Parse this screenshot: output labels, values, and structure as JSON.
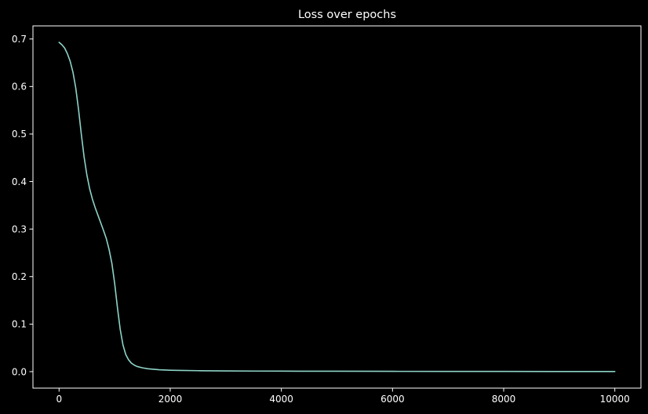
{
  "chart_data": {
    "type": "line",
    "title": "Loss over epochs",
    "xlabel": "",
    "ylabel": "",
    "xlim": [
      -470,
      10470
    ],
    "ylim": [
      -0.0347,
      0.7276
    ],
    "grid": false,
    "background_color": "#000000",
    "foreground_color": "#ffffff",
    "x_ticks": [
      0,
      2000,
      4000,
      6000,
      8000,
      10000
    ],
    "x_tick_labels": [
      "0",
      "2000",
      "4000",
      "6000",
      "8000",
      "10000"
    ],
    "y_ticks": [
      0.0,
      0.1,
      0.2,
      0.3,
      0.4,
      0.5,
      0.6,
      0.7
    ],
    "y_tick_labels": [
      "0.0",
      "0.1",
      "0.2",
      "0.3",
      "0.4",
      "0.5",
      "0.6",
      "0.7"
    ],
    "series": [
      {
        "color": "#8dd3c7",
        "x": [
          0,
          50,
          100,
          150,
          200,
          250,
          300,
          350,
          400,
          450,
          500,
          550,
          600,
          650,
          700,
          750,
          800,
          850,
          900,
          950,
          1000,
          1050,
          1100,
          1150,
          1200,
          1250,
          1300,
          1350,
          1400,
          1500,
          1600,
          1700,
          1800,
          2000,
          2200,
          2500,
          3000,
          3500,
          4000,
          5000,
          6000,
          7000,
          8000,
          9000,
          10000
        ],
        "y": [
          0.693,
          0.688,
          0.681,
          0.669,
          0.653,
          0.63,
          0.597,
          0.552,
          0.5,
          0.452,
          0.414,
          0.385,
          0.363,
          0.345,
          0.329,
          0.313,
          0.297,
          0.28,
          0.257,
          0.228,
          0.186,
          0.135,
          0.089,
          0.056,
          0.036,
          0.025,
          0.018,
          0.014,
          0.011,
          0.008,
          0.006,
          0.005,
          0.004,
          0.003,
          0.0025,
          0.002,
          0.0015,
          0.0012,
          0.001,
          0.0008,
          0.0006,
          0.0005,
          0.0004,
          0.0003,
          0.0002
        ]
      }
    ]
  }
}
